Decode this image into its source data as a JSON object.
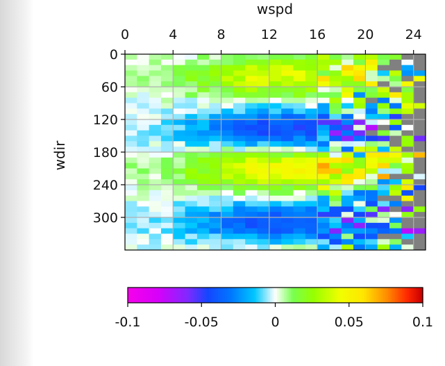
{
  "chart_data": {
    "type": "heatmap",
    "title": "",
    "xlabel": "wspd",
    "ylabel": "wdir",
    "xlim": [
      0,
      25
    ],
    "ylim": [
      360,
      0
    ],
    "x_ticks": [
      0,
      4,
      8,
      12,
      16,
      20,
      24
    ],
    "y_ticks": [
      0,
      60,
      120,
      180,
      240,
      300
    ],
    "x_axis_position": "top",
    "grid": true,
    "colormap": "gist_ncar-like (magenta → blue → cyan → white → green → yellow → red)",
    "missing_value_color": "#808080",
    "x_bin_width": 1,
    "y_bin_width": 10,
    "value_range": [
      -0.1,
      0.1
    ],
    "colorbar": {
      "orientation": "horizontal",
      "placement": "bottom",
      "ticks": [
        "-0.1",
        "-0.05",
        "0",
        "0.05",
        "0.1"
      ],
      "range": [
        -0.1,
        0.1
      ]
    },
    "approx_pattern": {
      "direction_centers": [
        {
          "wdir": 40,
          "value": 0.04
        },
        {
          "wdir": 140,
          "value": -0.045
        },
        {
          "wdir": 210,
          "value": 0.05
        },
        {
          "wdir": 310,
          "value": -0.04
        }
      ],
      "note": "values near 0 at wspd < 4, strengthening toward 12-16, noisy and with missing bins above ~20"
    }
  }
}
